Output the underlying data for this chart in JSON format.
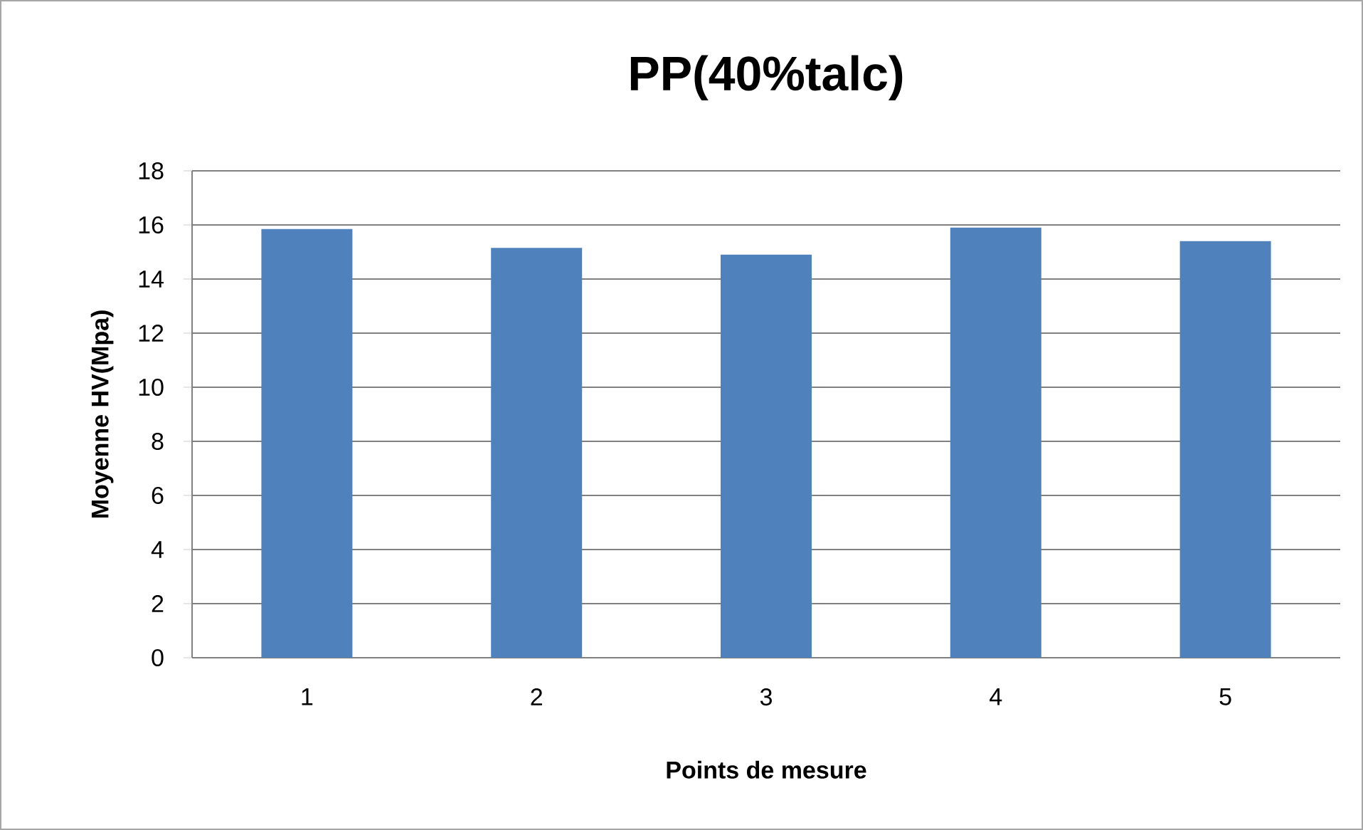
{
  "chart_data": {
    "type": "bar",
    "title": "PP(40%talc)",
    "xlabel": "Points de mesure",
    "ylabel": "Moyenne HV(Mpa)",
    "categories": [
      "1",
      "2",
      "3",
      "4",
      "5"
    ],
    "values": [
      15.85,
      15.15,
      14.9,
      15.9,
      15.4
    ],
    "color": "#4f81bd",
    "ylim": [
      0,
      18
    ],
    "yticks": [
      0,
      2,
      4,
      6,
      8,
      10,
      12,
      14,
      16,
      18
    ],
    "grid": "y"
  }
}
